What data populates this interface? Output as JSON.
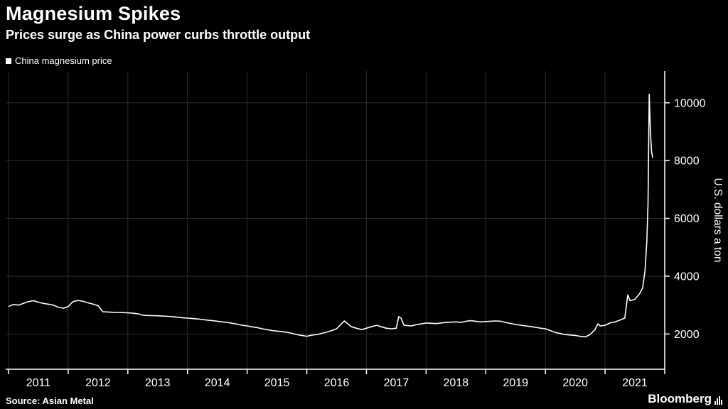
{
  "header": {
    "title": "Magnesium Spikes",
    "subtitle": "Prices surge as China power curbs throttle output"
  },
  "legend": {
    "label": "China magnesium price",
    "marker_color": "#ffffff"
  },
  "footer": {
    "source": "Source: Asian Metal",
    "brand": "Bloomberg"
  },
  "colors": {
    "background": "#000000",
    "text": "#ffffff",
    "grid": "#2c2c2c",
    "axis": "#ffffff",
    "line": "#ffffff"
  },
  "chart_data": {
    "type": "line",
    "title": "Magnesium Spikes",
    "subtitle": "Prices surge as China power curbs throttle output",
    "xlabel": "",
    "ylabel": "U.S. dollars a ton",
    "xlim": [
      2011,
      2022
    ],
    "ylim": [
      780,
      11100
    ],
    "yticks": [
      2000,
      4000,
      6000,
      8000,
      10000
    ],
    "xticks": [
      2011,
      2012,
      2013,
      2014,
      2015,
      2016,
      2017,
      2018,
      2019,
      2020,
      2021
    ],
    "grid": true,
    "legend_position": "top-left",
    "y_axis_side": "right",
    "series": [
      {
        "name": "China magnesium price",
        "points": [
          [
            2011.0,
            2950
          ],
          [
            2011.08,
            3020
          ],
          [
            2011.17,
            3000
          ],
          [
            2011.25,
            3060
          ],
          [
            2011.33,
            3120
          ],
          [
            2011.42,
            3150
          ],
          [
            2011.5,
            3100
          ],
          [
            2011.58,
            3060
          ],
          [
            2011.67,
            3030
          ],
          [
            2011.75,
            3000
          ],
          [
            2011.83,
            2930
          ],
          [
            2011.92,
            2890
          ],
          [
            2012.0,
            2950
          ],
          [
            2012.08,
            3120
          ],
          [
            2012.17,
            3160
          ],
          [
            2012.25,
            3130
          ],
          [
            2012.33,
            3080
          ],
          [
            2012.42,
            3030
          ],
          [
            2012.5,
            2980
          ],
          [
            2012.58,
            2770
          ],
          [
            2012.67,
            2760
          ],
          [
            2012.75,
            2750
          ],
          [
            2012.83,
            2745
          ],
          [
            2012.92,
            2740
          ],
          [
            2013.0,
            2730
          ],
          [
            2013.08,
            2720
          ],
          [
            2013.17,
            2700
          ],
          [
            2013.25,
            2650
          ],
          [
            2013.33,
            2640
          ],
          [
            2013.42,
            2635
          ],
          [
            2013.5,
            2630
          ],
          [
            2013.58,
            2620
          ],
          [
            2013.67,
            2610
          ],
          [
            2013.75,
            2600
          ],
          [
            2013.83,
            2580
          ],
          [
            2013.92,
            2560
          ],
          [
            2014.0,
            2550
          ],
          [
            2014.08,
            2535
          ],
          [
            2014.17,
            2520
          ],
          [
            2014.25,
            2500
          ],
          [
            2014.33,
            2480
          ],
          [
            2014.42,
            2460
          ],
          [
            2014.5,
            2440
          ],
          [
            2014.58,
            2420
          ],
          [
            2014.67,
            2400
          ],
          [
            2014.75,
            2370
          ],
          [
            2014.83,
            2340
          ],
          [
            2014.92,
            2300
          ],
          [
            2015.0,
            2280
          ],
          [
            2015.08,
            2250
          ],
          [
            2015.17,
            2220
          ],
          [
            2015.25,
            2180
          ],
          [
            2015.33,
            2150
          ],
          [
            2015.42,
            2120
          ],
          [
            2015.5,
            2100
          ],
          [
            2015.58,
            2080
          ],
          [
            2015.67,
            2060
          ],
          [
            2015.75,
            2020
          ],
          [
            2015.83,
            1980
          ],
          [
            2015.92,
            1950
          ],
          [
            2016.0,
            1920
          ],
          [
            2016.08,
            1960
          ],
          [
            2016.17,
            1980
          ],
          [
            2016.25,
            2020
          ],
          [
            2016.33,
            2060
          ],
          [
            2016.42,
            2120
          ],
          [
            2016.5,
            2180
          ],
          [
            2016.58,
            2350
          ],
          [
            2016.63,
            2450
          ],
          [
            2016.67,
            2380
          ],
          [
            2016.75,
            2250
          ],
          [
            2016.83,
            2200
          ],
          [
            2016.92,
            2150
          ],
          [
            2017.0,
            2200
          ],
          [
            2017.08,
            2250
          ],
          [
            2017.17,
            2300
          ],
          [
            2017.25,
            2250
          ],
          [
            2017.33,
            2200
          ],
          [
            2017.42,
            2180
          ],
          [
            2017.5,
            2200
          ],
          [
            2017.54,
            2600
          ],
          [
            2017.58,
            2550
          ],
          [
            2017.63,
            2300
          ],
          [
            2017.75,
            2280
          ],
          [
            2017.83,
            2320
          ],
          [
            2017.92,
            2350
          ],
          [
            2018.0,
            2380
          ],
          [
            2018.17,
            2360
          ],
          [
            2018.33,
            2400
          ],
          [
            2018.5,
            2420
          ],
          [
            2018.58,
            2400
          ],
          [
            2018.67,
            2440
          ],
          [
            2018.75,
            2460
          ],
          [
            2018.83,
            2440
          ],
          [
            2018.92,
            2420
          ],
          [
            2019.0,
            2430
          ],
          [
            2019.17,
            2450
          ],
          [
            2019.25,
            2440
          ],
          [
            2019.33,
            2400
          ],
          [
            2019.5,
            2330
          ],
          [
            2019.67,
            2280
          ],
          [
            2019.75,
            2260
          ],
          [
            2019.83,
            2230
          ],
          [
            2019.92,
            2200
          ],
          [
            2020.0,
            2180
          ],
          [
            2020.17,
            2050
          ],
          [
            2020.33,
            1980
          ],
          [
            2020.5,
            1950
          ],
          [
            2020.58,
            1920
          ],
          [
            2020.67,
            1900
          ],
          [
            2020.75,
            1980
          ],
          [
            2020.83,
            2150
          ],
          [
            2020.88,
            2350
          ],
          [
            2020.92,
            2280
          ],
          [
            2021.0,
            2300
          ],
          [
            2021.08,
            2380
          ],
          [
            2021.17,
            2420
          ],
          [
            2021.25,
            2480
          ],
          [
            2021.33,
            2550
          ],
          [
            2021.38,
            3350
          ],
          [
            2021.42,
            3150
          ],
          [
            2021.5,
            3200
          ],
          [
            2021.58,
            3400
          ],
          [
            2021.63,
            3600
          ],
          [
            2021.67,
            4200
          ],
          [
            2021.7,
            5200
          ],
          [
            2021.72,
            6500
          ],
          [
            2021.74,
            10300
          ],
          [
            2021.76,
            9000
          ],
          [
            2021.78,
            8300
          ],
          [
            2021.8,
            8100
          ]
        ]
      }
    ]
  }
}
